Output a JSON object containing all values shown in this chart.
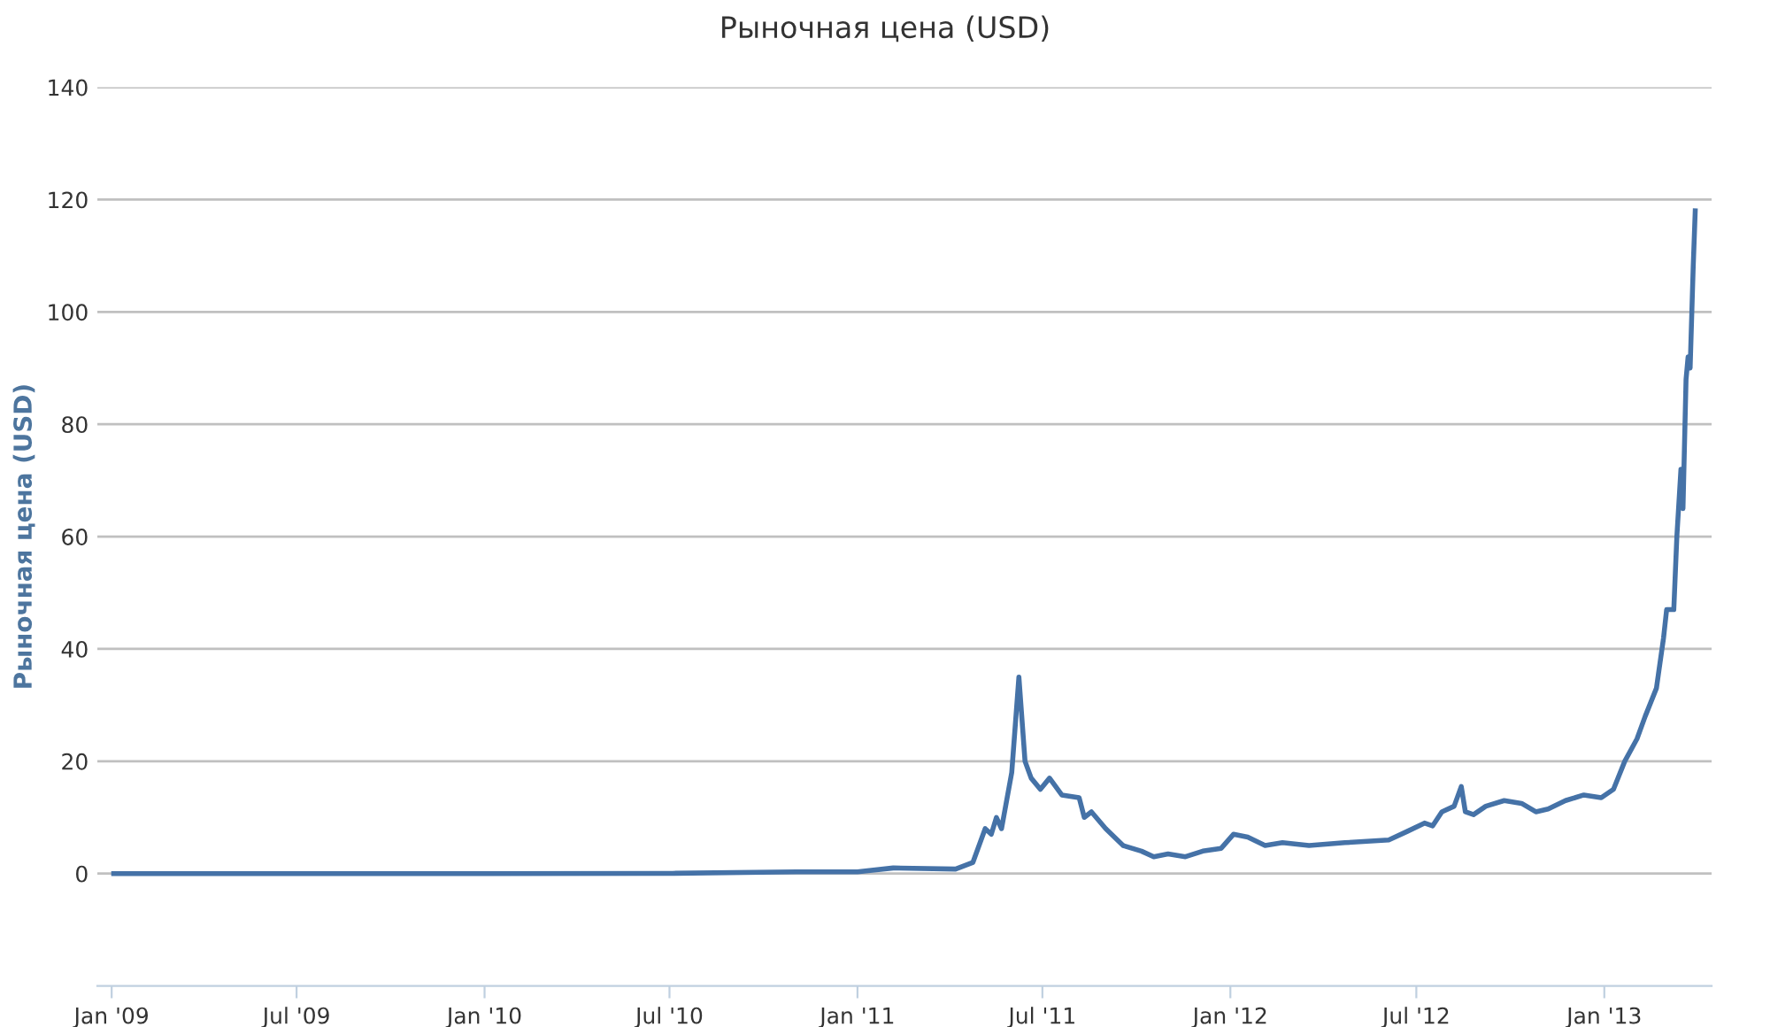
{
  "chart_data": {
    "type": "line",
    "title": "Рыночная цена (USD)",
    "ylabel": "Рыночная цена (USD)",
    "x": [
      "2009-01-03",
      "2009-07-01",
      "2010-01-01",
      "2010-07-04",
      "2010-11-02",
      "2011-01-01",
      "2011-02-05",
      "2011-04-07",
      "2011-04-24",
      "2011-05-06",
      "2011-05-12",
      "2011-05-17",
      "2011-05-22",
      "2011-06-01",
      "2011-06-08",
      "2011-06-14",
      "2011-06-20",
      "2011-06-29",
      "2011-07-08",
      "2011-07-20",
      "2011-08-06",
      "2011-08-11",
      "2011-08-18",
      "2011-09-01",
      "2011-09-18",
      "2011-10-06",
      "2011-10-18",
      "2011-11-01",
      "2011-11-18",
      "2011-12-05",
      "2011-12-23",
      "2012-01-04",
      "2012-01-18",
      "2012-02-04",
      "2012-02-21",
      "2012-03-18",
      "2012-04-22",
      "2012-06-04",
      "2012-06-22",
      "2012-07-09",
      "2012-07-17",
      "2012-07-26",
      "2012-08-07",
      "2012-08-14",
      "2012-08-18",
      "2012-08-26",
      "2012-09-07",
      "2012-09-25",
      "2012-10-12",
      "2012-10-26",
      "2012-11-07",
      "2012-11-24",
      "2012-12-12",
      "2012-12-29",
      "2013-01-10",
      "2013-01-21",
      "2013-02-02",
      "2013-02-10",
      "2013-02-21",
      "2013-02-28",
      "2013-03-03",
      "2013-03-10",
      "2013-03-13",
      "2013-03-17",
      "2013-03-19",
      "2013-03-22",
      "2013-03-24",
      "2013-03-26",
      "2013-03-29",
      "2013-03-31"
    ],
    "series": [
      {
        "color": "#4572a7",
        "values": [
          0,
          0,
          0,
          0.05,
          0.3,
          0.3,
          1,
          0.8,
          2,
          8,
          7,
          10,
          8,
          18,
          35,
          20,
          17,
          15,
          17,
          14,
          13.5,
          10,
          11,
          8,
          5,
          4,
          3,
          3.5,
          3,
          4,
          4.5,
          7,
          6.5,
          5,
          5.5,
          5,
          5.5,
          6,
          7.5,
          9,
          8.5,
          11,
          12,
          15.5,
          11,
          10.5,
          12,
          13,
          12.5,
          11,
          11.5,
          13,
          14,
          13.5,
          15,
          20,
          24,
          28,
          33,
          42,
          47,
          47,
          60,
          72,
          65,
          88,
          92,
          90,
          108,
          118
        ]
      }
    ],
    "xlim": [
      "2008-12-18",
      "2013-04-16"
    ],
    "xticks": [
      {
        "value": "2009-01-01",
        "label": "Jan '09"
      },
      {
        "value": "2009-07-01",
        "label": "Jul '09"
      },
      {
        "value": "2010-01-01",
        "label": "Jan '10"
      },
      {
        "value": "2010-07-01",
        "label": "Jul '10"
      },
      {
        "value": "2011-01-01",
        "label": "Jan '11"
      },
      {
        "value": "2011-07-01",
        "label": "Jul '11"
      },
      {
        "value": "2012-01-01",
        "label": "Jan '12"
      },
      {
        "value": "2012-07-01",
        "label": "Jul '12"
      },
      {
        "value": "2013-01-01",
        "label": "Jan '13"
      }
    ],
    "ylim": [
      -20,
      140
    ],
    "yticks": [
      0,
      20,
      40,
      60,
      80,
      100,
      120,
      140
    ],
    "grid": "y",
    "marker": "none",
    "line_style": "solid",
    "legend": false
  }
}
